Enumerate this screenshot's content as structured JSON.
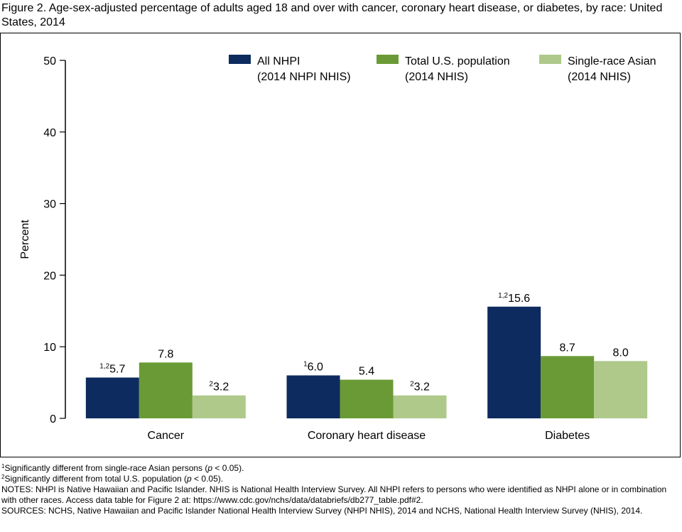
{
  "figure": {
    "title": "Figure 2. Age-sex-adjusted percentage of adults aged 18 and over with cancer, coronary heart disease, or diabetes, by race: United States, 2014"
  },
  "chart_data": {
    "type": "bar",
    "title": "Figure 2. Age-sex-adjusted percentage of adults aged 18 and over with cancer, coronary heart disease, or diabetes, by race: United States, 2014",
    "xlabel": "",
    "ylabel": "Percent",
    "ylim": [
      0,
      50
    ],
    "yticks": [
      "0",
      "10",
      "20",
      "30",
      "40",
      "50"
    ],
    "grid": false,
    "legend_position": "top-right",
    "categories": [
      "Cancer",
      "Coronary heart disease",
      "Diabetes"
    ],
    "series": [
      {
        "name_line1": "All NHPI",
        "name_line2": "(2014 NHPI NHIS)",
        "color": "#0d2b5e",
        "values": [
          5.7,
          6.0,
          15.6
        ],
        "labels": [
          "5.7",
          "6.0",
          "15.6"
        ],
        "superscripts": [
          "1,2",
          "1",
          "1,2"
        ]
      },
      {
        "name_line1": "Total U.S. population",
        "name_line2": "(2014 NHIS)",
        "color": "#6a9a35",
        "values": [
          7.8,
          5.4,
          8.7
        ],
        "labels": [
          "7.8",
          "5.4",
          "8.7"
        ],
        "superscripts": [
          "",
          "",
          ""
        ]
      },
      {
        "name_line1": "Single-race Asian",
        "name_line2": "(2014 NHIS)",
        "color": "#aec98a",
        "values": [
          3.2,
          3.2,
          8.0
        ],
        "labels": [
          "3.2",
          "3.2",
          "8.0"
        ],
        "superscripts": [
          "2",
          "2",
          ""
        ]
      }
    ]
  },
  "footnotes": {
    "note1": {
      "sup": "1",
      "text_before": "Significantly different from single-race Asian persons (",
      "p": "p",
      "text_after": " < 0.05)."
    },
    "note2": {
      "sup": "2",
      "text_before": "Significantly different from total U.S. population (",
      "p": "p",
      "text_after": " < 0.05)."
    },
    "notes": "NOTES: NHPI is Native Hawaiian and Pacific Islander. NHIS is National Health Interview Survey. All NHPI refers to persons who were identified as NHPI alone or in combination with other races. Access data table for Figure 2 at: https://www.cdc.gov/nchs/data/databriefs/db277_table.pdf#2.",
    "sources": "SOURCES: NCHS, Native Hawaiian and Pacific Islander National Health Interview Survey (NHPI NHIS), 2014 and NCHS, National Health Interview Survey (NHIS), 2014."
  }
}
